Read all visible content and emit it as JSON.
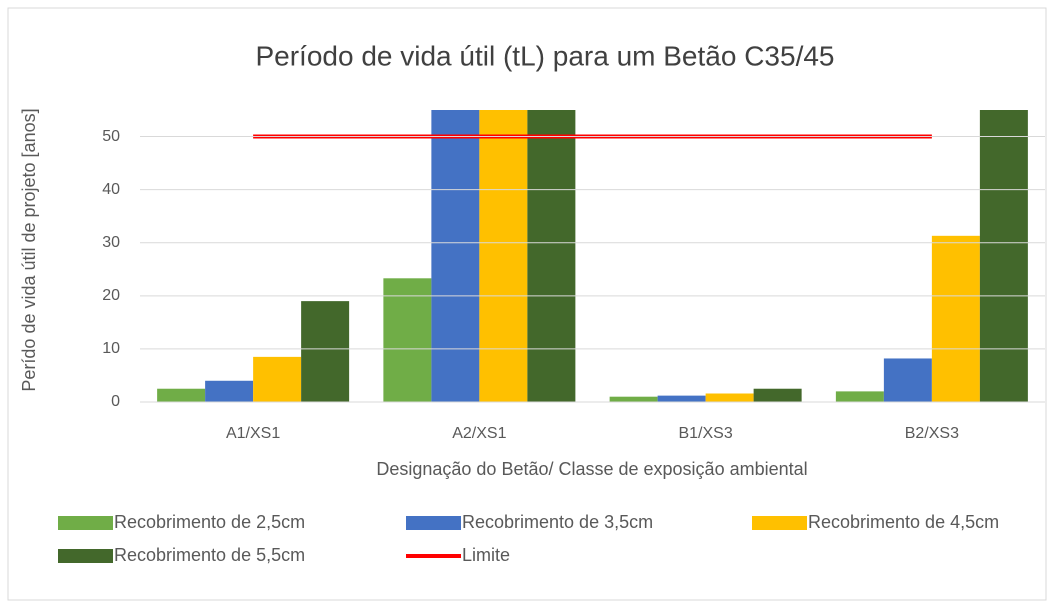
{
  "chart_data": {
    "type": "bar",
    "title": "Período de vida útil (tL) para um Betão C35/45",
    "x_label": "Designação do Betão/ Classe de exposição ambiental",
    "y_label": "Perído de vida útil de projeto [anos]",
    "categories": [
      "A1/XS1",
      "A2/XS1",
      "B1/XS3",
      "B2/XS3"
    ],
    "series": [
      {
        "name": "Recobrimento de 2,5cm",
        "color": "#70ad47",
        "values": [
          2.5,
          23.3,
          1,
          2
        ]
      },
      {
        "name": "Recobrimento de 3,5cm",
        "color": "#4472c4",
        "values": [
          4,
          55,
          1.2,
          8.2
        ]
      },
      {
        "name": "Recobrimento de 4,5cm",
        "color": "#ffc000",
        "values": [
          8.5,
          55,
          1.6,
          31.3
        ]
      },
      {
        "name": "Recobrimento de 5,5cm",
        "color": "#43682b",
        "values": [
          19,
          55,
          2.5,
          55
        ]
      },
      {
        "name": "Limite",
        "color": "#ff0000",
        "type": "line",
        "values": [
          50,
          50,
          50,
          50
        ]
      }
    ],
    "ylim": [
      0,
      55
    ],
    "yticks": [
      0,
      10,
      20,
      30,
      40,
      50
    ],
    "grid": true,
    "legend": "bottom"
  }
}
